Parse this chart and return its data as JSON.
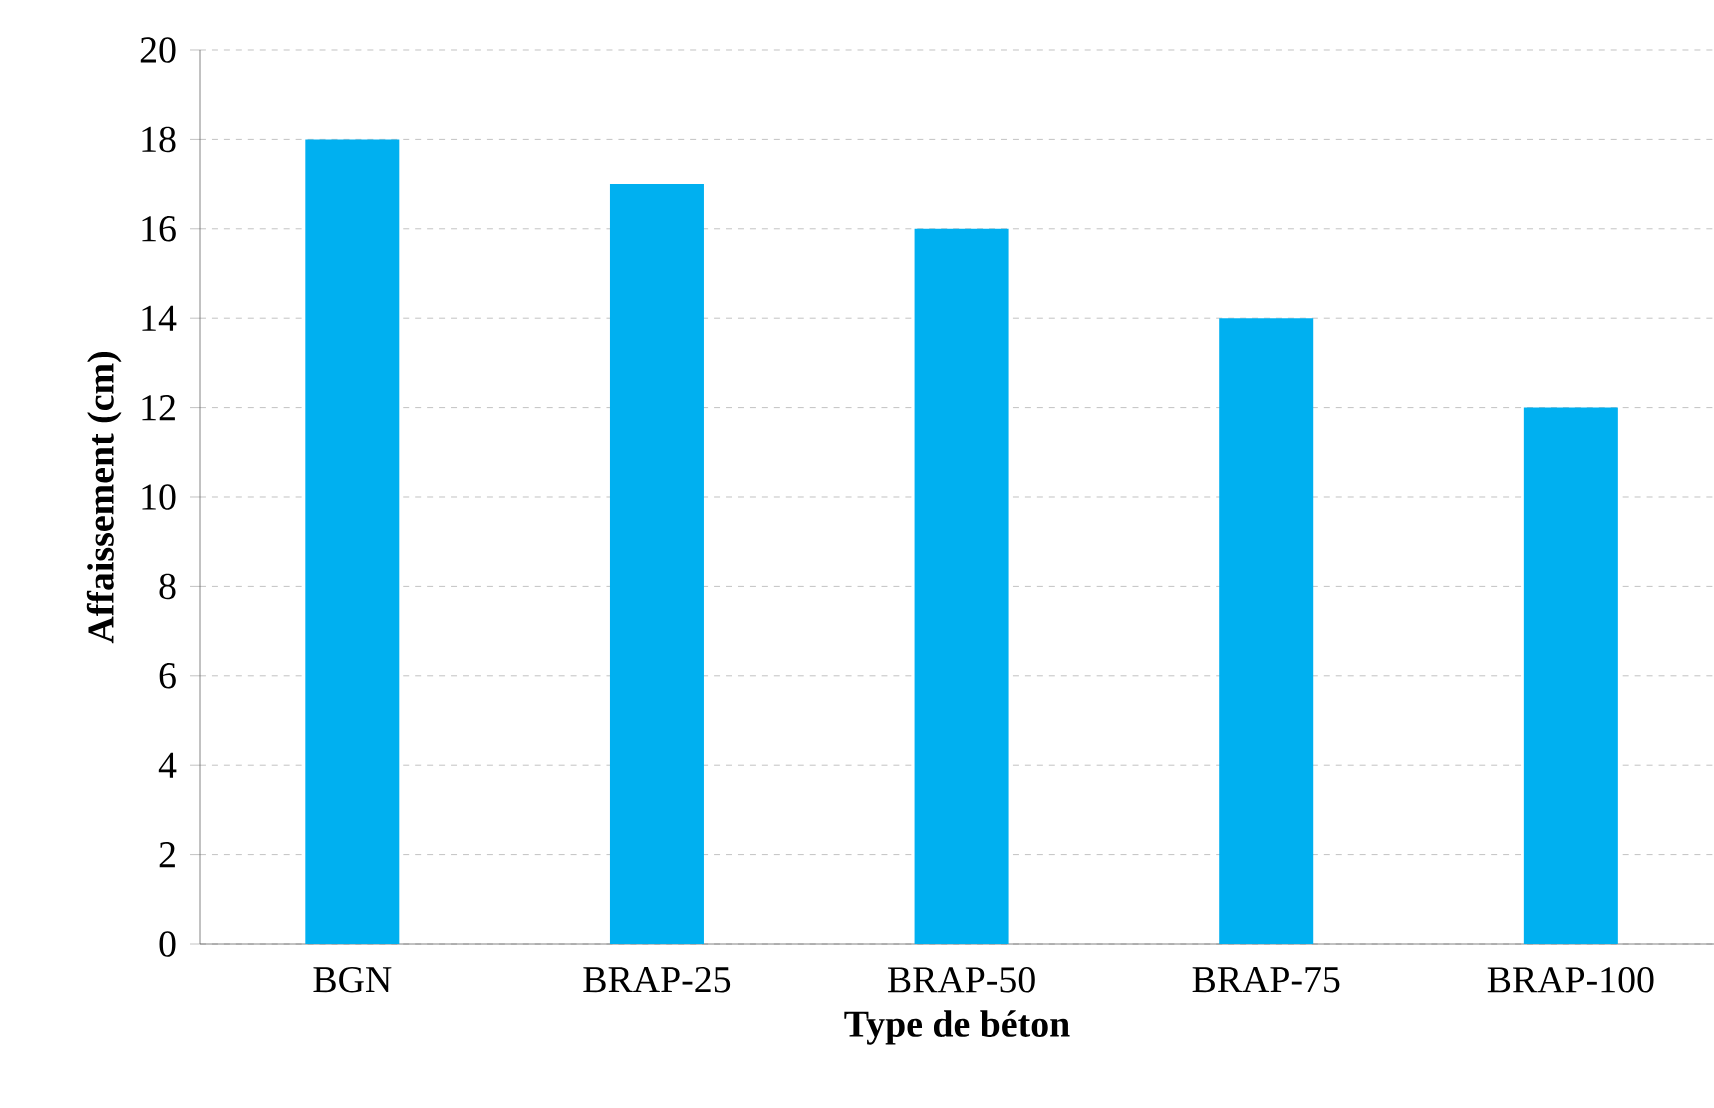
{
  "chart_data": {
    "type": "bar",
    "xlabel": "Type de béton",
    "ylabel": "Affaissement (cm)",
    "categories": [
      "BGN",
      "BRAP-25",
      "BRAP-50",
      "BRAP-75",
      "BRAP-100"
    ],
    "values": [
      18,
      17,
      16,
      14,
      12
    ],
    "color": "#00b0f0",
    "ylim": [
      0,
      20
    ],
    "yticks": [
      0,
      2,
      4,
      6,
      8,
      10,
      12,
      14,
      16,
      18,
      20
    ],
    "grid": "y"
  }
}
